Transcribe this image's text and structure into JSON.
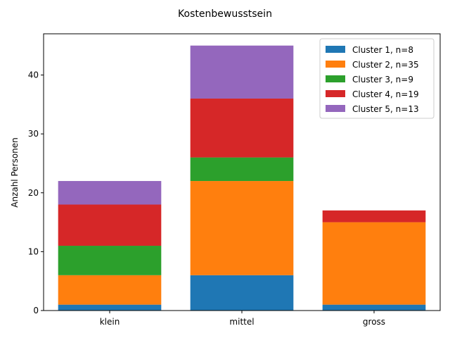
{
  "chart_data": {
    "type": "bar",
    "stacked": true,
    "title": "Kostenbewusstsein",
    "xlabel": "",
    "ylabel": "Anzahl Personen",
    "categories": [
      "klein",
      "mittel",
      "gross"
    ],
    "ylim": [
      0,
      47
    ],
    "yticks": [
      0,
      10,
      20,
      30,
      40
    ],
    "grid": false,
    "legend_position": "top-right",
    "series": [
      {
        "name": "Cluster 1, n=8",
        "color": "#1f77b4",
        "values": [
          1,
          6,
          1
        ]
      },
      {
        "name": "Cluster 2, n=35",
        "color": "#ff7f0e",
        "values": [
          5,
          16,
          14
        ]
      },
      {
        "name": "Cluster 3, n=9",
        "color": "#2ca02c",
        "values": [
          5,
          4,
          0
        ]
      },
      {
        "name": "Cluster 4, n=19",
        "color": "#d62728",
        "values": [
          7,
          10,
          2
        ]
      },
      {
        "name": "Cluster 5, n=13",
        "color": "#9467bd",
        "values": [
          4,
          9,
          0
        ]
      }
    ]
  }
}
